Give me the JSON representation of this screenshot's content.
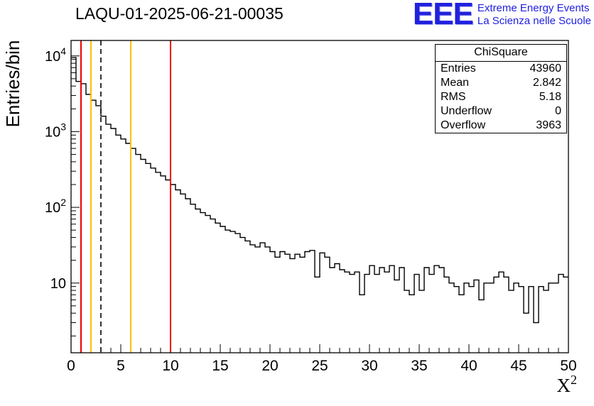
{
  "title": "LAQU-01-2025-06-21-00035",
  "logo": {
    "mark": "EEE",
    "line1": "Extreme Energy Events",
    "line2": "La Scienza nelle Scuole",
    "color": "#2121de"
  },
  "stats": {
    "title": "ChiSquare",
    "rows": [
      {
        "label": "Entries",
        "value": "43960"
      },
      {
        "label": "Mean",
        "value": "2.842"
      },
      {
        "label": "RMS",
        "value": "5.18"
      },
      {
        "label": "Underflow",
        "value": "0"
      },
      {
        "label": "Overflow",
        "value": "3963"
      }
    ]
  },
  "chart_data": {
    "type": "bar",
    "style": "step-histogram",
    "title": "LAQU-01-2025-06-21-00035",
    "xlabel": "X^2",
    "ylabel": "Entries/bin",
    "xlim": [
      0,
      50
    ],
    "ylim": [
      1.2,
      16000
    ],
    "ylog": true,
    "grid": false,
    "bin_start": 0,
    "bin_width": 0.5,
    "x_major_ticks": [
      0,
      5,
      10,
      15,
      20,
      25,
      30,
      35,
      40,
      45,
      50
    ],
    "y_major_ticks": [
      10,
      100,
      1000,
      10000
    ],
    "y_tick_labels": [
      "10",
      "10^2",
      "10^3",
      "10^4"
    ],
    "line_color": "#000000",
    "values": [
      9500,
      4600,
      4300,
      3100,
      2600,
      2200,
      1600,
      1250,
      1100,
      900,
      800,
      700,
      600,
      500,
      430,
      380,
      330,
      290,
      260,
      230,
      200,
      170,
      150,
      130,
      110,
      95,
      85,
      78,
      70,
      62,
      56,
      50,
      48,
      45,
      40,
      36,
      32,
      30,
      34,
      30,
      26,
      22,
      26,
      24,
      21,
      24,
      22,
      26,
      27,
      12,
      25,
      22,
      16,
      18,
      15,
      14,
      13,
      14,
      7,
      13,
      17,
      13,
      16,
      14,
      17,
      11,
      16,
      8,
      7,
      13,
      8,
      16,
      13,
      17,
      16,
      12,
      10,
      9,
      7,
      10,
      9,
      11,
      6,
      10,
      10,
      12,
      14,
      12,
      8,
      10,
      9,
      4,
      9,
      3,
      9,
      8,
      10,
      10,
      13,
      12
    ],
    "vlines": [
      {
        "x": 1,
        "color": "#ee0000",
        "style": "solid"
      },
      {
        "x": 2,
        "color": "#ffbf00",
        "style": "solid"
      },
      {
        "x": 3,
        "color": "#000000",
        "style": "dashed"
      },
      {
        "x": 6,
        "color": "#ffbf00",
        "style": "solid"
      },
      {
        "x": 10,
        "color": "#ee0000",
        "style": "solid"
      }
    ]
  }
}
